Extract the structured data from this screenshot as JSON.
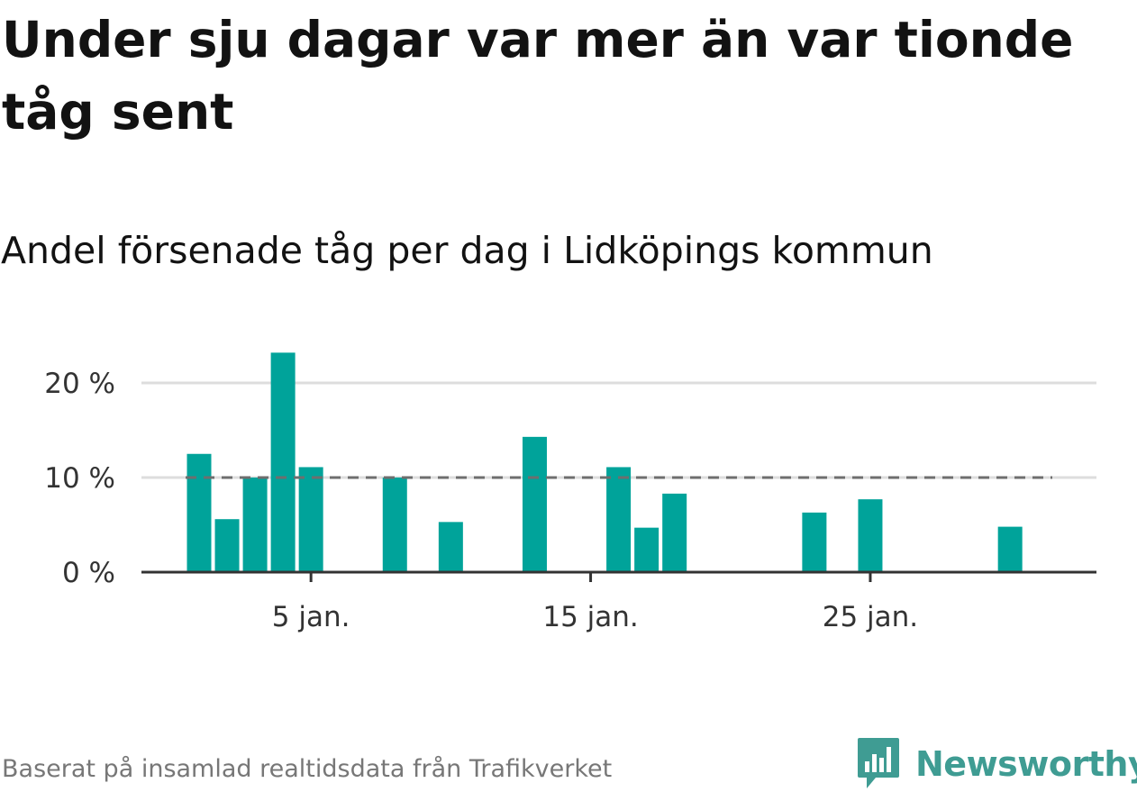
{
  "title": "Under sju dagar var mer än var tionde tåg sent",
  "subtitle": "Andel försenade tåg per dag i Lidköpings kommun",
  "source": "Baserat på insamlad realtidsdata från Trafikverket",
  "brand": {
    "name": "Newsworthy",
    "color": "#3f9c93"
  },
  "colors": {
    "bar": "#00a39a",
    "reference": "#6e6e6e",
    "grid": "#dddddd",
    "axis": "#333333"
  },
  "chart_data": {
    "type": "bar",
    "xlabel": "",
    "ylabel": "",
    "x": [
      1,
      2,
      3,
      4,
      5,
      6,
      7,
      8,
      9,
      10,
      11,
      12,
      13,
      14,
      15,
      16,
      17,
      18,
      19,
      20,
      21,
      22,
      23,
      24,
      25,
      26,
      27,
      28,
      29,
      30,
      31
    ],
    "values": [
      12.5,
      5.6,
      10.0,
      23.2,
      11.1,
      0,
      0,
      10.0,
      0,
      5.3,
      0,
      0,
      14.3,
      0,
      0,
      11.1,
      4.7,
      8.3,
      0,
      0,
      0,
      0,
      6.3,
      0,
      7.7,
      0,
      0,
      0,
      0,
      4.8,
      0
    ],
    "reference_line": 10,
    "ylim": [
      0,
      25
    ],
    "yticks": [
      0,
      10,
      20
    ],
    "ytick_labels": [
      "0 %",
      "10 %",
      "20 %"
    ],
    "xticks": [
      5,
      15,
      25
    ],
    "xtick_labels": [
      "5 jan.",
      "15 jan.",
      "25 jan."
    ],
    "grid": true,
    "legend": "none"
  }
}
